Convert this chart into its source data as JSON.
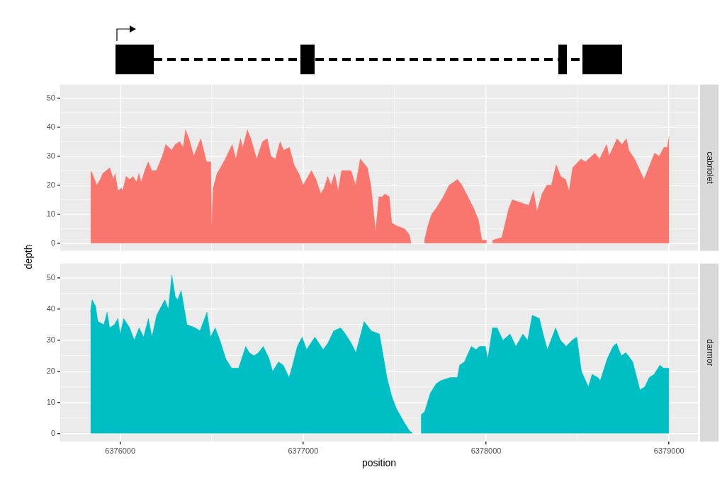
{
  "chart_data": [
    {
      "type": "area",
      "ylabel": "depth",
      "xlim": [
        6375672,
        6379158
      ],
      "xticks": [
        6376000,
        6377000,
        6378000,
        6379000
      ],
      "ylim": [
        -2.6,
        54.6
      ],
      "yticks": [
        0,
        10,
        20,
        30,
        40,
        50
      ],
      "grid": true,
      "tick_labels": "y",
      "series": [
        {
          "name": "cabriolet",
          "color": "#f8766d",
          "x": [
            6375838,
            6375847,
            6375872,
            6375891,
            6375904,
            6375943,
            6375962,
            6375972,
            6375987,
            6376006,
            6376013,
            6376032,
            6376051,
            6376070,
            6376089,
            6376102,
            6376115,
            6376134,
            6376153,
            6376172,
            6376198,
            6376230,
            6376249,
            6376281,
            6376300,
            6376325,
            6376344,
            6376357,
            6376376,
            6376402,
            6376421,
            6376440,
            6376472,
            6376495,
            6376500,
            6376508,
            6376529,
            6376548,
            6376574,
            6376612,
            6376632,
            6376657,
            6376670,
            6376695,
            6376714,
            6376746,
            6376778,
            6376804,
            6376823,
            6376848,
            6376874,
            6376893,
            6376925,
            6376950,
            6376976,
            6377000,
            6377045,
            6377070,
            6377096,
            6377115,
            6377134,
            6377153,
            6377172,
            6377191,
            6377210,
            6377236,
            6377261,
            6377287,
            6377312,
            6377351,
            6377370,
            6377396,
            6377414,
            6377433,
            6377446,
            6377471,
            6377484,
            6377510,
            6377554,
            6377580,
            6377590,
            6377625,
            6377663,
            6377682,
            6377702,
            6377727,
            6377766,
            6377798,
            6377823,
            6377843,
            6377868,
            6377900,
            6377932,
            6377958,
            6377977,
            6378003,
            6378020,
            6378035,
            6378086,
            6378124,
            6378143,
            6378188,
            6378233,
            6378259,
            6378278,
            6378306,
            6378332,
            6378357,
            6378383,
            6378408,
            6378434,
            6378454,
            6378473,
            6378518,
            6378543,
            6378595,
            6378620,
            6378659,
            6378672,
            6378716,
            6378742,
            6378767,
            6378780,
            6378812,
            6378863,
            6378889,
            6378921,
            6378947,
            6378972,
            6378991,
            6379001
          ],
          "values": [
            25,
            24,
            20,
            22,
            24,
            26,
            22,
            24,
            18,
            19,
            18,
            23,
            22,
            23,
            21,
            24,
            21,
            25,
            28,
            25,
            25,
            30,
            34,
            32,
            34,
            35,
            33,
            39,
            36,
            30,
            33,
            36,
            28,
            28,
            5,
            19,
            24,
            26,
            29,
            34,
            29,
            36,
            33,
            39,
            36,
            29,
            35,
            36,
            30,
            29,
            35,
            32,
            33,
            27,
            24,
            20,
            25,
            22,
            17,
            19,
            23,
            20,
            24,
            18,
            25,
            25,
            25,
            20,
            29,
            26,
            20,
            4,
            16,
            16,
            17,
            16,
            7,
            6,
            5,
            3,
            0,
            null,
            1,
            6,
            10,
            12,
            16,
            20,
            21,
            22,
            20,
            16,
            12,
            8,
            1,
            1,
            null,
            1,
            2,
            12,
            15,
            14,
            13,
            18,
            11,
            17,
            20,
            20,
            27,
            23,
            22,
            18,
            26,
            29,
            28,
            31,
            29,
            34,
            30,
            36,
            34,
            36,
            32,
            29,
            22,
            26,
            31,
            30,
            33,
            33,
            37
          ]
        }
      ]
    },
    {
      "type": "area",
      "xlabel": "position",
      "xlim": [
        6375672,
        6379158
      ],
      "xticks": [
        6376000,
        6377000,
        6378000,
        6379000
      ],
      "ylim": [
        -2.6,
        54.6
      ],
      "yticks": [
        0,
        10,
        20,
        30,
        40,
        50
      ],
      "grid": true,
      "series": [
        {
          "name": "darmor",
          "color": "#00bfc4",
          "x": [
            6375837,
            6375846,
            6375865,
            6375878,
            6375910,
            6375929,
            6375942,
            6375968,
            6375987,
            6376000,
            6376019,
            6376051,
            6376077,
            6376103,
            6376128,
            6376154,
            6376173,
            6376199,
            6376244,
            6376263,
            6376282,
            6376301,
            6376314,
            6376333,
            6376365,
            6376410,
            6376436,
            6376474,
            6376494,
            6376519,
            6376545,
            6376577,
            6376609,
            6376647,
            6376686,
            6376705,
            6376731,
            6376756,
            6376782,
            6376814,
            6376833,
            6376865,
            6376891,
            6376923,
            6376942,
            6376968,
            6376994,
            6377019,
            6377064,
            6377109,
            6377135,
            6377167,
            6377205,
            6377231,
            6377263,
            6377288,
            6377333,
            6377372,
            6377417,
            6377426,
            6377458,
            6377484,
            6377510,
            6377548,
            6377580,
            6377599,
            6377620,
            6377644,
            6377664,
            6377695,
            6377727,
            6377753,
            6377804,
            6377843,
            6377855,
            6377881,
            6377919,
            6377945,
            6377964,
            6377996,
            6378009,
            6378035,
            6378060,
            6378092,
            6378131,
            6378163,
            6378201,
            6378227,
            6378252,
            6378291,
            6378316,
            6378335,
            6378380,
            6378406,
            6378438,
            6378470,
            6378496,
            6378521,
            6378559,
            6378579,
            6378611,
            6378624,
            6378662,
            6378694,
            6378713,
            6378739,
            6378764,
            6378802,
            6378841,
            6378867,
            6378892,
            6378918,
            6378950,
            6378969,
            6378999
          ],
          "values": [
            39,
            43,
            41,
            36,
            35,
            39,
            34,
            35,
            37,
            32,
            37,
            34,
            30,
            34,
            31,
            37,
            31,
            38,
            43,
            40,
            51,
            44,
            43,
            46,
            35,
            34,
            33,
            39,
            31,
            34,
            30,
            24,
            21,
            21,
            28,
            26,
            25,
            26,
            28,
            24,
            20,
            23,
            22,
            18,
            22,
            28,
            31,
            27,
            31,
            27,
            29,
            33,
            34,
            32,
            29,
            26,
            36,
            33,
            32,
            29,
            18,
            12,
            8,
            4,
            1,
            0,
            null,
            6,
            7,
            13,
            16,
            17,
            18,
            18,
            22,
            23,
            28,
            27,
            28,
            28,
            24,
            34,
            34,
            30,
            32,
            28,
            32,
            30,
            38,
            37,
            31,
            27,
            34,
            30,
            28,
            30,
            31,
            20,
            15,
            19,
            18,
            17,
            24,
            28,
            29,
            25,
            26,
            23,
            14,
            15,
            18,
            19,
            22,
            21,
            21
          ]
        }
      ]
    }
  ]
}
